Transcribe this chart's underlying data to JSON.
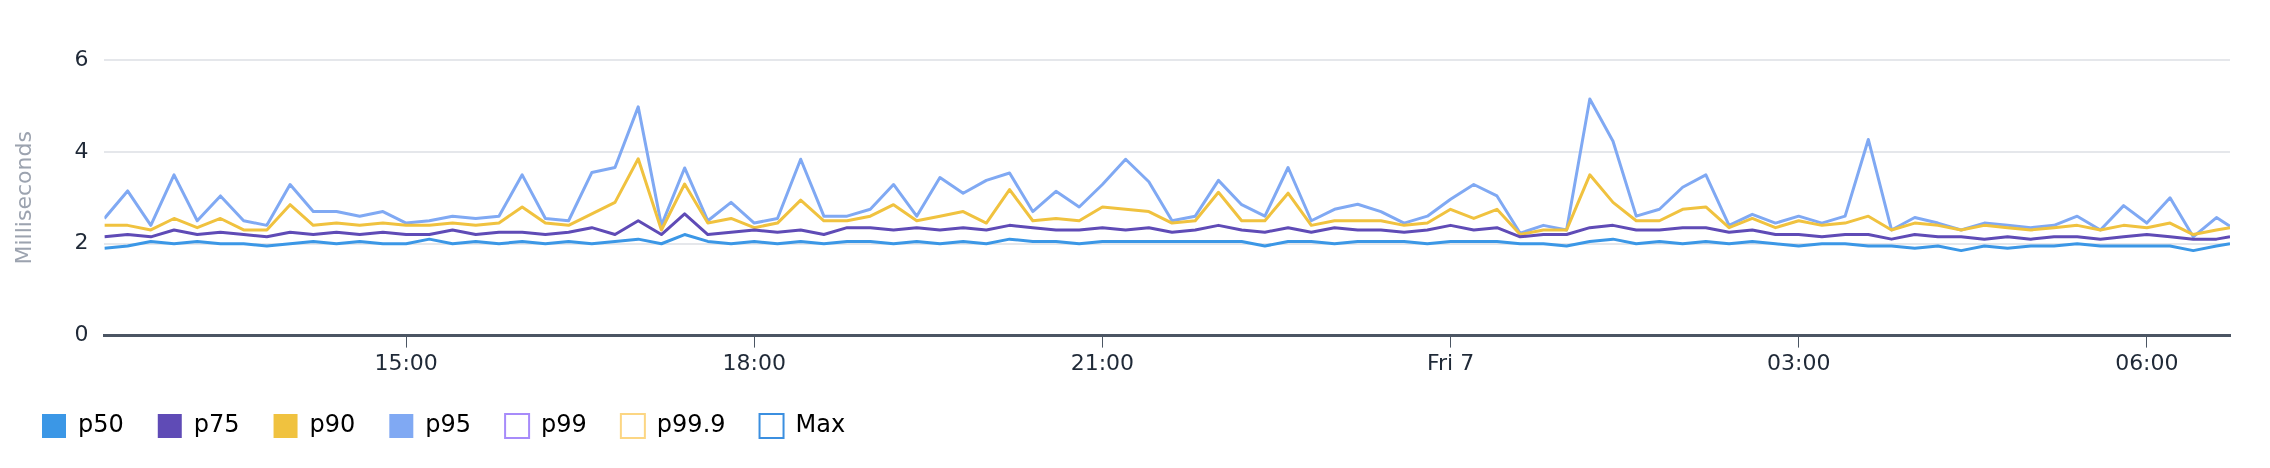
{
  "chart_data": {
    "type": "line",
    "ylabel": "Milliseconds",
    "x": [
      "--04-06T12:24",
      "--04-06T12:36",
      "--04-06T12:48",
      "--04-06T13:00",
      "--04-06T13:12",
      "--04-06T13:24",
      "--04-06T13:36",
      "--04-06T13:48",
      "--04-06T14:00",
      "--04-06T14:12",
      "--04-06T14:24",
      "--04-06T14:36",
      "--04-06T14:48",
      "--04-06T15:00",
      "--04-06T15:12",
      "--04-06T15:24",
      "--04-06T15:36",
      "--04-06T15:48",
      "--04-06T16:00",
      "--04-06T16:12",
      "--04-06T16:24",
      "--04-06T16:36",
      "--04-06T16:48",
      "--04-06T17:00",
      "--04-06T17:12",
      "--04-06T17:24",
      "--04-06T17:36",
      "--04-06T17:48",
      "--04-06T18:00",
      "--04-06T18:12",
      "--04-06T18:24",
      "--04-06T18:36",
      "--04-06T18:48",
      "--04-06T19:00",
      "--04-06T19:12",
      "--04-06T19:24",
      "--04-06T19:36",
      "--04-06T19:48",
      "--04-06T20:00",
      "--04-06T20:12",
      "--04-06T20:24",
      "--04-06T20:36",
      "--04-06T20:48",
      "--04-06T21:00",
      "--04-06T21:12",
      "--04-06T21:24",
      "--04-06T21:36",
      "--04-06T21:48",
      "--04-06T22:00",
      "--04-06T22:12",
      "--04-06T22:24",
      "--04-06T22:36",
      "--04-06T22:48",
      "--04-06T23:00",
      "--04-06T23:12",
      "--04-06T23:24",
      "--04-06T23:36",
      "--04-06T23:48",
      "--04-07T00:00",
      "--04-07T00:12",
      "--04-07T00:24",
      "--04-07T00:36",
      "--04-07T00:48",
      "--04-07T01:00",
      "--04-07T01:12",
      "--04-07T01:24",
      "--04-07T01:36",
      "--04-07T01:48",
      "--04-07T02:00",
      "--04-07T02:12",
      "--04-07T02:24",
      "--04-07T02:36",
      "--04-07T02:48",
      "--04-07T03:00",
      "--04-07T03:12",
      "--04-07T03:24",
      "--04-07T03:36",
      "--04-07T03:48",
      "--04-07T04:00",
      "--04-07T04:12",
      "--04-07T04:24",
      "--04-07T04:36",
      "--04-07T04:48",
      "--04-07T05:00",
      "--04-07T05:12",
      "--04-07T05:24",
      "--04-07T05:36",
      "--04-07T05:48",
      "--04-07T06:00",
      "--04-07T06:12",
      "--04-07T06:24",
      "--04-07T06:36",
      "--04-07T06:43"
    ],
    "series": [
      {
        "name": "p50",
        "color": "#3b97e6",
        "values": [
          1.9,
          1.95,
          2.05,
          2.0,
          2.05,
          2.0,
          2.0,
          1.95,
          2.0,
          2.05,
          2.0,
          2.05,
          2.0,
          2.0,
          2.1,
          2.0,
          2.05,
          2.0,
          2.05,
          2.0,
          2.05,
          2.0,
          2.05,
          2.1,
          2.0,
          2.2,
          2.05,
          2.0,
          2.05,
          2.0,
          2.05,
          2.0,
          2.05,
          2.05,
          2.0,
          2.05,
          2.0,
          2.05,
          2.0,
          2.1,
          2.05,
          2.05,
          2.0,
          2.05,
          2.05,
          2.05,
          2.05,
          2.05,
          2.05,
          2.05,
          1.95,
          2.05,
          2.05,
          2.0,
          2.05,
          2.05,
          2.05,
          2.0,
          2.05,
          2.05,
          2.05,
          2.0,
          2.0,
          1.95,
          2.05,
          2.1,
          2.0,
          2.05,
          2.0,
          2.05,
          2.0,
          2.05,
          2.0,
          1.95,
          2.0,
          2.0,
          1.95,
          1.95,
          1.9,
          1.95,
          1.85,
          1.95,
          1.9,
          1.95,
          1.95,
          2.0,
          1.95,
          1.95,
          1.95,
          1.95,
          1.85,
          1.95,
          2.0
        ]
      },
      {
        "name": "p75",
        "color": "#5f4bb6",
        "values": [
          2.15,
          2.2,
          2.15,
          2.3,
          2.2,
          2.25,
          2.2,
          2.15,
          2.25,
          2.2,
          2.25,
          2.2,
          2.25,
          2.2,
          2.2,
          2.3,
          2.2,
          2.25,
          2.25,
          2.2,
          2.25,
          2.35,
          2.2,
          2.5,
          2.2,
          2.65,
          2.2,
          2.25,
          2.3,
          2.25,
          2.3,
          2.2,
          2.35,
          2.35,
          2.3,
          2.35,
          2.3,
          2.35,
          2.3,
          2.4,
          2.35,
          2.3,
          2.3,
          2.35,
          2.3,
          2.35,
          2.25,
          2.3,
          2.4,
          2.3,
          2.25,
          2.35,
          2.25,
          2.35,
          2.3,
          2.3,
          2.25,
          2.3,
          2.4,
          2.3,
          2.35,
          2.15,
          2.2,
          2.2,
          2.35,
          2.4,
          2.3,
          2.3,
          2.35,
          2.35,
          2.25,
          2.3,
          2.2,
          2.2,
          2.15,
          2.2,
          2.2,
          2.1,
          2.2,
          2.15,
          2.15,
          2.1,
          2.15,
          2.1,
          2.15,
          2.15,
          2.1,
          2.15,
          2.2,
          2.15,
          2.1,
          2.1,
          2.15
        ]
      },
      {
        "name": "p90",
        "color": "#f0c23f",
        "values": [
          2.4,
          2.4,
          2.3,
          2.55,
          2.35,
          2.55,
          2.3,
          2.3,
          2.85,
          2.4,
          2.45,
          2.4,
          2.45,
          2.4,
          2.4,
          2.45,
          2.4,
          2.45,
          2.8,
          2.45,
          2.4,
          2.65,
          2.9,
          3.85,
          2.3,
          3.3,
          2.45,
          2.55,
          2.35,
          2.45,
          2.95,
          2.5,
          2.5,
          2.6,
          2.85,
          2.5,
          2.6,
          2.7,
          2.45,
          3.18,
          2.5,
          2.55,
          2.5,
          2.8,
          2.75,
          2.7,
          2.45,
          2.5,
          3.12,
          2.5,
          2.5,
          3.1,
          2.4,
          2.5,
          2.5,
          2.5,
          2.4,
          2.45,
          2.75,
          2.55,
          2.75,
          2.2,
          2.3,
          2.3,
          3.5,
          2.9,
          2.5,
          2.5,
          2.75,
          2.8,
          2.35,
          2.55,
          2.35,
          2.5,
          2.4,
          2.45,
          2.6,
          2.3,
          2.45,
          2.4,
          2.3,
          2.4,
          2.35,
          2.3,
          2.35,
          2.4,
          2.3,
          2.4,
          2.35,
          2.45,
          2.2,
          2.3,
          2.35
        ]
      },
      {
        "name": "p95",
        "color": "#80a9f3",
        "values": [
          2.55,
          3.15,
          2.4,
          3.5,
          2.5,
          3.04,
          2.5,
          2.4,
          3.29,
          2.7,
          2.7,
          2.6,
          2.7,
          2.45,
          2.5,
          2.6,
          2.55,
          2.6,
          3.5,
          2.55,
          2.5,
          3.55,
          3.66,
          4.98,
          2.4,
          3.65,
          2.5,
          2.9,
          2.45,
          2.55,
          3.84,
          2.6,
          2.6,
          2.75,
          3.29,
          2.6,
          3.44,
          3.1,
          3.38,
          3.54,
          2.7,
          3.14,
          2.8,
          3.29,
          3.84,
          3.35,
          2.5,
          2.6,
          3.38,
          2.85,
          2.6,
          3.66,
          2.5,
          2.75,
          2.86,
          2.7,
          2.45,
          2.6,
          2.97,
          3.29,
          3.04,
          2.23,
          2.4,
          2.3,
          5.15,
          4.23,
          2.6,
          2.75,
          3.23,
          3.5,
          2.4,
          2.64,
          2.45,
          2.6,
          2.45,
          2.6,
          4.27,
          2.3,
          2.57,
          2.45,
          2.3,
          2.45,
          2.4,
          2.35,
          2.4,
          2.6,
          2.3,
          2.83,
          2.45,
          3.0,
          2.15,
          2.57,
          2.38
        ]
      },
      {
        "name": "p99",
        "color": "#a78bfa",
        "values": [
          null,
          null,
          null,
          null,
          null,
          null,
          null,
          null,
          null,
          null,
          null,
          null,
          null,
          null,
          null,
          null,
          null,
          null,
          null,
          null,
          null,
          null,
          null,
          null,
          null,
          null,
          null,
          null,
          null,
          null,
          null,
          null,
          null,
          null,
          null,
          null,
          null,
          null,
          null,
          null,
          null,
          null,
          null,
          null,
          null,
          null,
          null,
          null,
          null,
          null,
          null,
          null,
          null,
          null,
          null,
          null,
          null,
          null,
          null,
          null,
          null,
          null,
          null,
          null,
          null,
          null,
          null,
          null,
          null,
          null,
          null,
          null,
          null,
          null,
          null,
          null,
          null,
          null,
          null,
          null,
          null,
          null,
          null,
          null,
          null,
          null,
          null,
          null,
          null,
          null,
          null,
          null,
          null
        ]
      },
      {
        "name": "p99.9",
        "color": "#fcd683",
        "values": [
          null,
          null,
          null,
          null,
          null,
          null,
          null,
          null,
          null,
          null,
          null,
          null,
          null,
          null,
          null,
          null,
          null,
          null,
          null,
          null,
          null,
          null,
          null,
          null,
          null,
          null,
          null,
          null,
          null,
          null,
          null,
          null,
          null,
          null,
          null,
          null,
          null,
          null,
          null,
          null,
          null,
          null,
          null,
          null,
          null,
          null,
          null,
          null,
          null,
          null,
          null,
          null,
          null,
          null,
          null,
          null,
          null,
          null,
          null,
          null,
          null,
          null,
          null,
          null,
          null,
          null,
          null,
          null,
          null,
          null,
          null,
          null,
          null,
          null,
          null,
          null,
          null,
          null,
          null,
          null,
          null,
          null,
          null,
          null,
          null,
          null,
          null,
          null,
          null,
          null,
          null,
          null,
          null
        ]
      },
      {
        "name": "Max",
        "color": "#3b8fe0",
        "values": [
          null,
          null,
          null,
          null,
          null,
          null,
          null,
          null,
          null,
          null,
          null,
          null,
          null,
          null,
          null,
          null,
          null,
          null,
          null,
          null,
          null,
          null,
          null,
          null,
          null,
          null,
          null,
          null,
          null,
          null,
          null,
          null,
          null,
          null,
          null,
          null,
          null,
          null,
          null,
          null,
          null,
          null,
          null,
          null,
          null,
          null,
          null,
          null,
          null,
          null,
          null,
          null,
          null,
          null,
          null,
          null,
          null,
          null,
          null,
          null,
          null,
          null,
          null,
          null,
          null,
          null,
          null,
          null,
          null,
          null,
          null,
          null,
          null,
          null,
          null,
          null,
          null,
          null,
          null,
          null,
          null,
          null,
          null,
          null,
          null,
          null,
          null,
          null,
          null,
          null,
          null,
          null,
          null
        ]
      }
    ],
    "xlim": [
      "--04-06T12:24",
      "--04-07T06:43"
    ],
    "xticks": [
      {
        "value": "--04-06T15:00",
        "label": "15:00"
      },
      {
        "value": "--04-06T18:00",
        "label": "18:00"
      },
      {
        "value": "--04-06T21:00",
        "label": "21:00"
      },
      {
        "value": "--04-07T00:00",
        "label": "Fri 7"
      },
      {
        "value": "--04-07T03:00",
        "label": "03:00"
      },
      {
        "value": "--04-07T06:00",
        "label": "06:00"
      }
    ],
    "ylim": [
      0,
      6
    ],
    "yticks": [
      0,
      2,
      4,
      6
    ],
    "grid": "y",
    "legend": "bottom left",
    "marker": "none",
    "line_style": "solid"
  }
}
